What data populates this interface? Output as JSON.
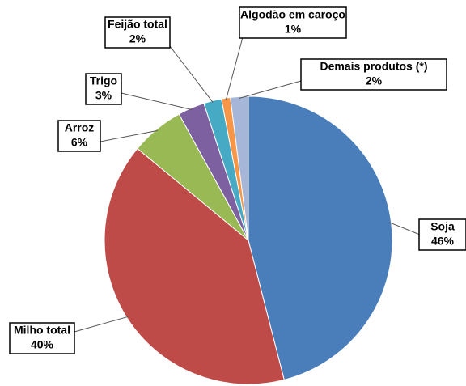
{
  "chart_data": {
    "type": "pie",
    "categories": [
      "Soja",
      "Milho total",
      "Arroz",
      "Trigo",
      "Feijão total",
      "Algodão em caroço",
      "Demais produtos (*)"
    ],
    "values": [
      46,
      40,
      6,
      3,
      2,
      1,
      2
    ],
    "value_labels": [
      "46%",
      "40%",
      "6%",
      "3%",
      "2%",
      "1%",
      "2%"
    ],
    "colors": [
      "#4a7ebb",
      "#be4b48",
      "#98b954",
      "#7d60a0",
      "#46aac5",
      "#f79646",
      "#a5b6d9"
    ]
  }
}
